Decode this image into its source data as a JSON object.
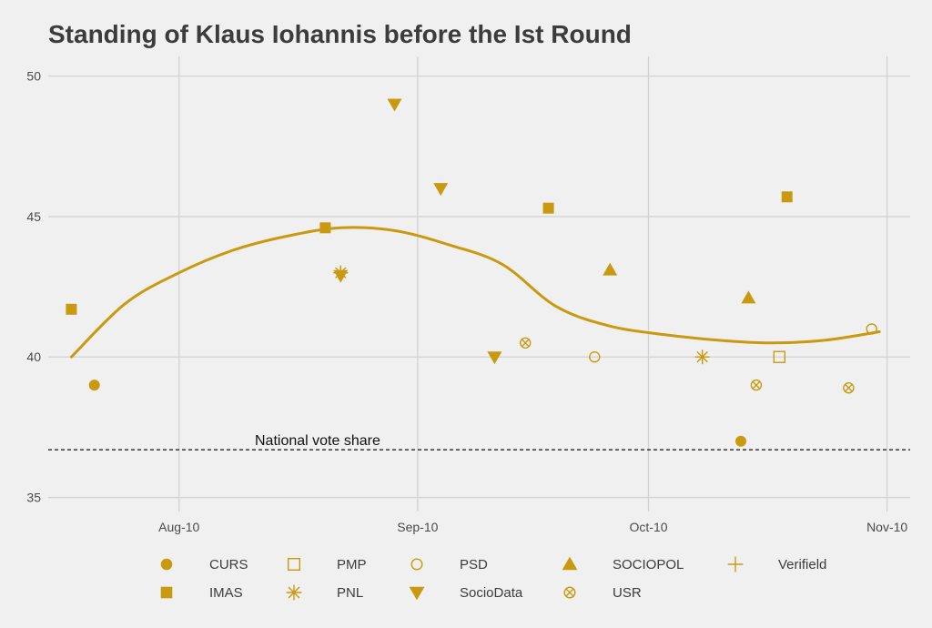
{
  "chart_data": {
    "type": "scatter",
    "title": "Standing of Klaus Iohannis before the Ist Round",
    "xlabel": "",
    "ylabel": "",
    "x_ticks": [
      "Aug-10",
      "Sep-10",
      "Oct-10",
      "Nov-10"
    ],
    "x_tick_dates": [
      "2014-08-10",
      "2014-09-10",
      "2014-10-10",
      "2014-11-10"
    ],
    "xlim": [
      "2014-07-24",
      "2014-11-13"
    ],
    "y_ticks": [
      "35",
      "40",
      "45",
      "50"
    ],
    "ylim": [
      34.5,
      50.7
    ],
    "grid": true,
    "legend_position": "bottom",
    "color": "#c99a10",
    "series": [
      {
        "name": "CURS",
        "marker": "filled-circle",
        "points": [
          {
            "x": "2014-07-30",
            "y": 39.0
          },
          {
            "x": "2014-10-22",
            "y": 37.0
          }
        ]
      },
      {
        "name": "IMAS",
        "marker": "filled-square",
        "points": [
          {
            "x": "2014-07-27",
            "y": 41.7
          },
          {
            "x": "2014-08-29",
            "y": 44.6
          },
          {
            "x": "2014-09-27",
            "y": 45.3
          },
          {
            "x": "2014-10-28",
            "y": 45.7
          }
        ]
      },
      {
        "name": "PMP",
        "marker": "open-square",
        "points": [
          {
            "x": "2014-10-27",
            "y": 40.0
          }
        ]
      },
      {
        "name": "PNL",
        "marker": "asterisk",
        "points": [
          {
            "x": "2014-08-31",
            "y": 43.0
          },
          {
            "x": "2014-10-17",
            "y": 40.0
          }
        ]
      },
      {
        "name": "PSD",
        "marker": "open-circle",
        "points": [
          {
            "x": "2014-10-03",
            "y": 40.0
          },
          {
            "x": "2014-11-08",
            "y": 41.0
          }
        ]
      },
      {
        "name": "SocioData",
        "marker": "filled-triangle-down",
        "points": [
          {
            "x": "2014-08-31",
            "y": 42.9
          },
          {
            "x": "2014-09-07",
            "y": 49.0
          },
          {
            "x": "2014-09-13",
            "y": 46.0
          },
          {
            "x": "2014-09-20",
            "y": 40.0
          }
        ]
      },
      {
        "name": "SOCIOPOL",
        "marker": "filled-triangle-up",
        "points": [
          {
            "x": "2014-10-05",
            "y": 43.1
          },
          {
            "x": "2014-10-23",
            "y": 42.1
          }
        ]
      },
      {
        "name": "USR",
        "marker": "circle-x",
        "points": [
          {
            "x": "2014-09-24",
            "y": 40.5
          },
          {
            "x": "2014-10-24",
            "y": 39.0
          },
          {
            "x": "2014-11-05",
            "y": 38.9
          }
        ]
      },
      {
        "name": "Verifield",
        "marker": "plus",
        "points": [
          {
            "x": "2014-08-31",
            "y": 43.0
          }
        ]
      }
    ],
    "trend": {
      "name": "",
      "points": [
        {
          "x": "2014-07-27",
          "y": 40.0
        },
        {
          "x": "2014-08-03",
          "y": 41.9
        },
        {
          "x": "2014-08-10",
          "y": 43.0
        },
        {
          "x": "2014-08-17",
          "y": 43.8
        },
        {
          "x": "2014-08-24",
          "y": 44.3
        },
        {
          "x": "2014-08-31",
          "y": 44.6
        },
        {
          "x": "2014-09-07",
          "y": 44.5
        },
        {
          "x": "2014-09-14",
          "y": 44.0
        },
        {
          "x": "2014-09-21",
          "y": 43.3
        },
        {
          "x": "2014-09-28",
          "y": 41.8
        },
        {
          "x": "2014-10-05",
          "y": 41.1
        },
        {
          "x": "2014-10-12",
          "y": 40.8
        },
        {
          "x": "2014-10-19",
          "y": 40.6
        },
        {
          "x": "2014-10-26",
          "y": 40.5
        },
        {
          "x": "2014-11-02",
          "y": 40.6
        },
        {
          "x": "2014-11-09",
          "y": 40.9
        }
      ]
    },
    "reference_line": {
      "label": "National vote share",
      "y": 36.7
    }
  }
}
